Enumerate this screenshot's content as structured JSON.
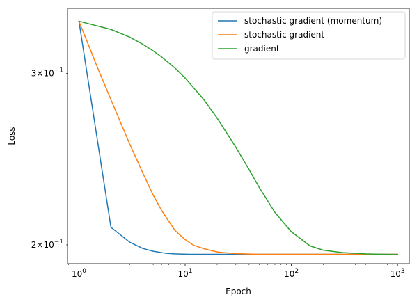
{
  "chart_data": {
    "type": "line",
    "xlabel": "Epoch",
    "ylabel": "Loss",
    "xscale": "log",
    "yscale": "log",
    "xlim": [
      0.78,
      1290
    ],
    "ylim": [
      0.1913,
      0.35
    ],
    "xticks": [
      {
        "value": 1,
        "base": "10",
        "exp": "0"
      },
      {
        "value": 10,
        "base": "10",
        "exp": "1"
      },
      {
        "value": 100,
        "base": "10",
        "exp": "2"
      },
      {
        "value": 1000,
        "base": "10",
        "exp": "3"
      }
    ],
    "yticks": [
      {
        "value": 0.2,
        "mant": "2",
        "base": "10",
        "exp": "−1"
      },
      {
        "value": 0.3,
        "mant": "3",
        "base": "10",
        "exp": "−1"
      }
    ],
    "grid": false,
    "legend_position": "upper right",
    "series": [
      {
        "name": "stochastic gradient (momentum)",
        "color": "#1f77b4",
        "x": [
          1,
          2,
          3,
          4,
          5,
          6.5,
          8,
          11,
          15,
          20,
          30,
          50,
          100,
          200,
          500,
          1000
        ],
        "y": [
          0.3395,
          0.2085,
          0.2013,
          0.1983,
          0.197,
          0.1961,
          0.1958,
          0.1956,
          0.1956,
          0.1956,
          0.1956,
          0.1956,
          0.1956,
          0.1956,
          0.1956,
          0.1956
        ]
      },
      {
        "name": "stochastic gradient",
        "color": "#ff7f0e",
        "x": [
          1,
          1.5,
          2,
          3,
          4,
          5,
          6,
          8,
          10,
          12,
          15,
          20,
          25,
          30,
          40,
          50,
          70,
          100,
          200,
          500,
          1000
        ],
        "y": [
          0.3395,
          0.304,
          0.282,
          0.254,
          0.237,
          0.225,
          0.217,
          0.207,
          0.2025,
          0.1998,
          0.1982,
          0.1967,
          0.1962,
          0.1959,
          0.1957,
          0.1956,
          0.1956,
          0.1956,
          0.1956,
          0.1956,
          0.1956
        ]
      },
      {
        "name": "gradient",
        "color": "#2ca02c",
        "x": [
          1,
          2,
          3,
          4,
          5,
          6,
          8,
          10,
          15,
          20,
          30,
          40,
          50,
          70,
          100,
          150,
          200,
          300,
          500,
          700,
          1000
        ],
        "y": [
          0.3395,
          0.333,
          0.327,
          0.3215,
          0.3165,
          0.312,
          0.304,
          0.2968,
          0.282,
          0.27,
          0.252,
          0.239,
          0.229,
          0.216,
          0.2063,
          0.1995,
          0.1975,
          0.1964,
          0.1958,
          0.1956,
          0.1955
        ]
      }
    ]
  }
}
